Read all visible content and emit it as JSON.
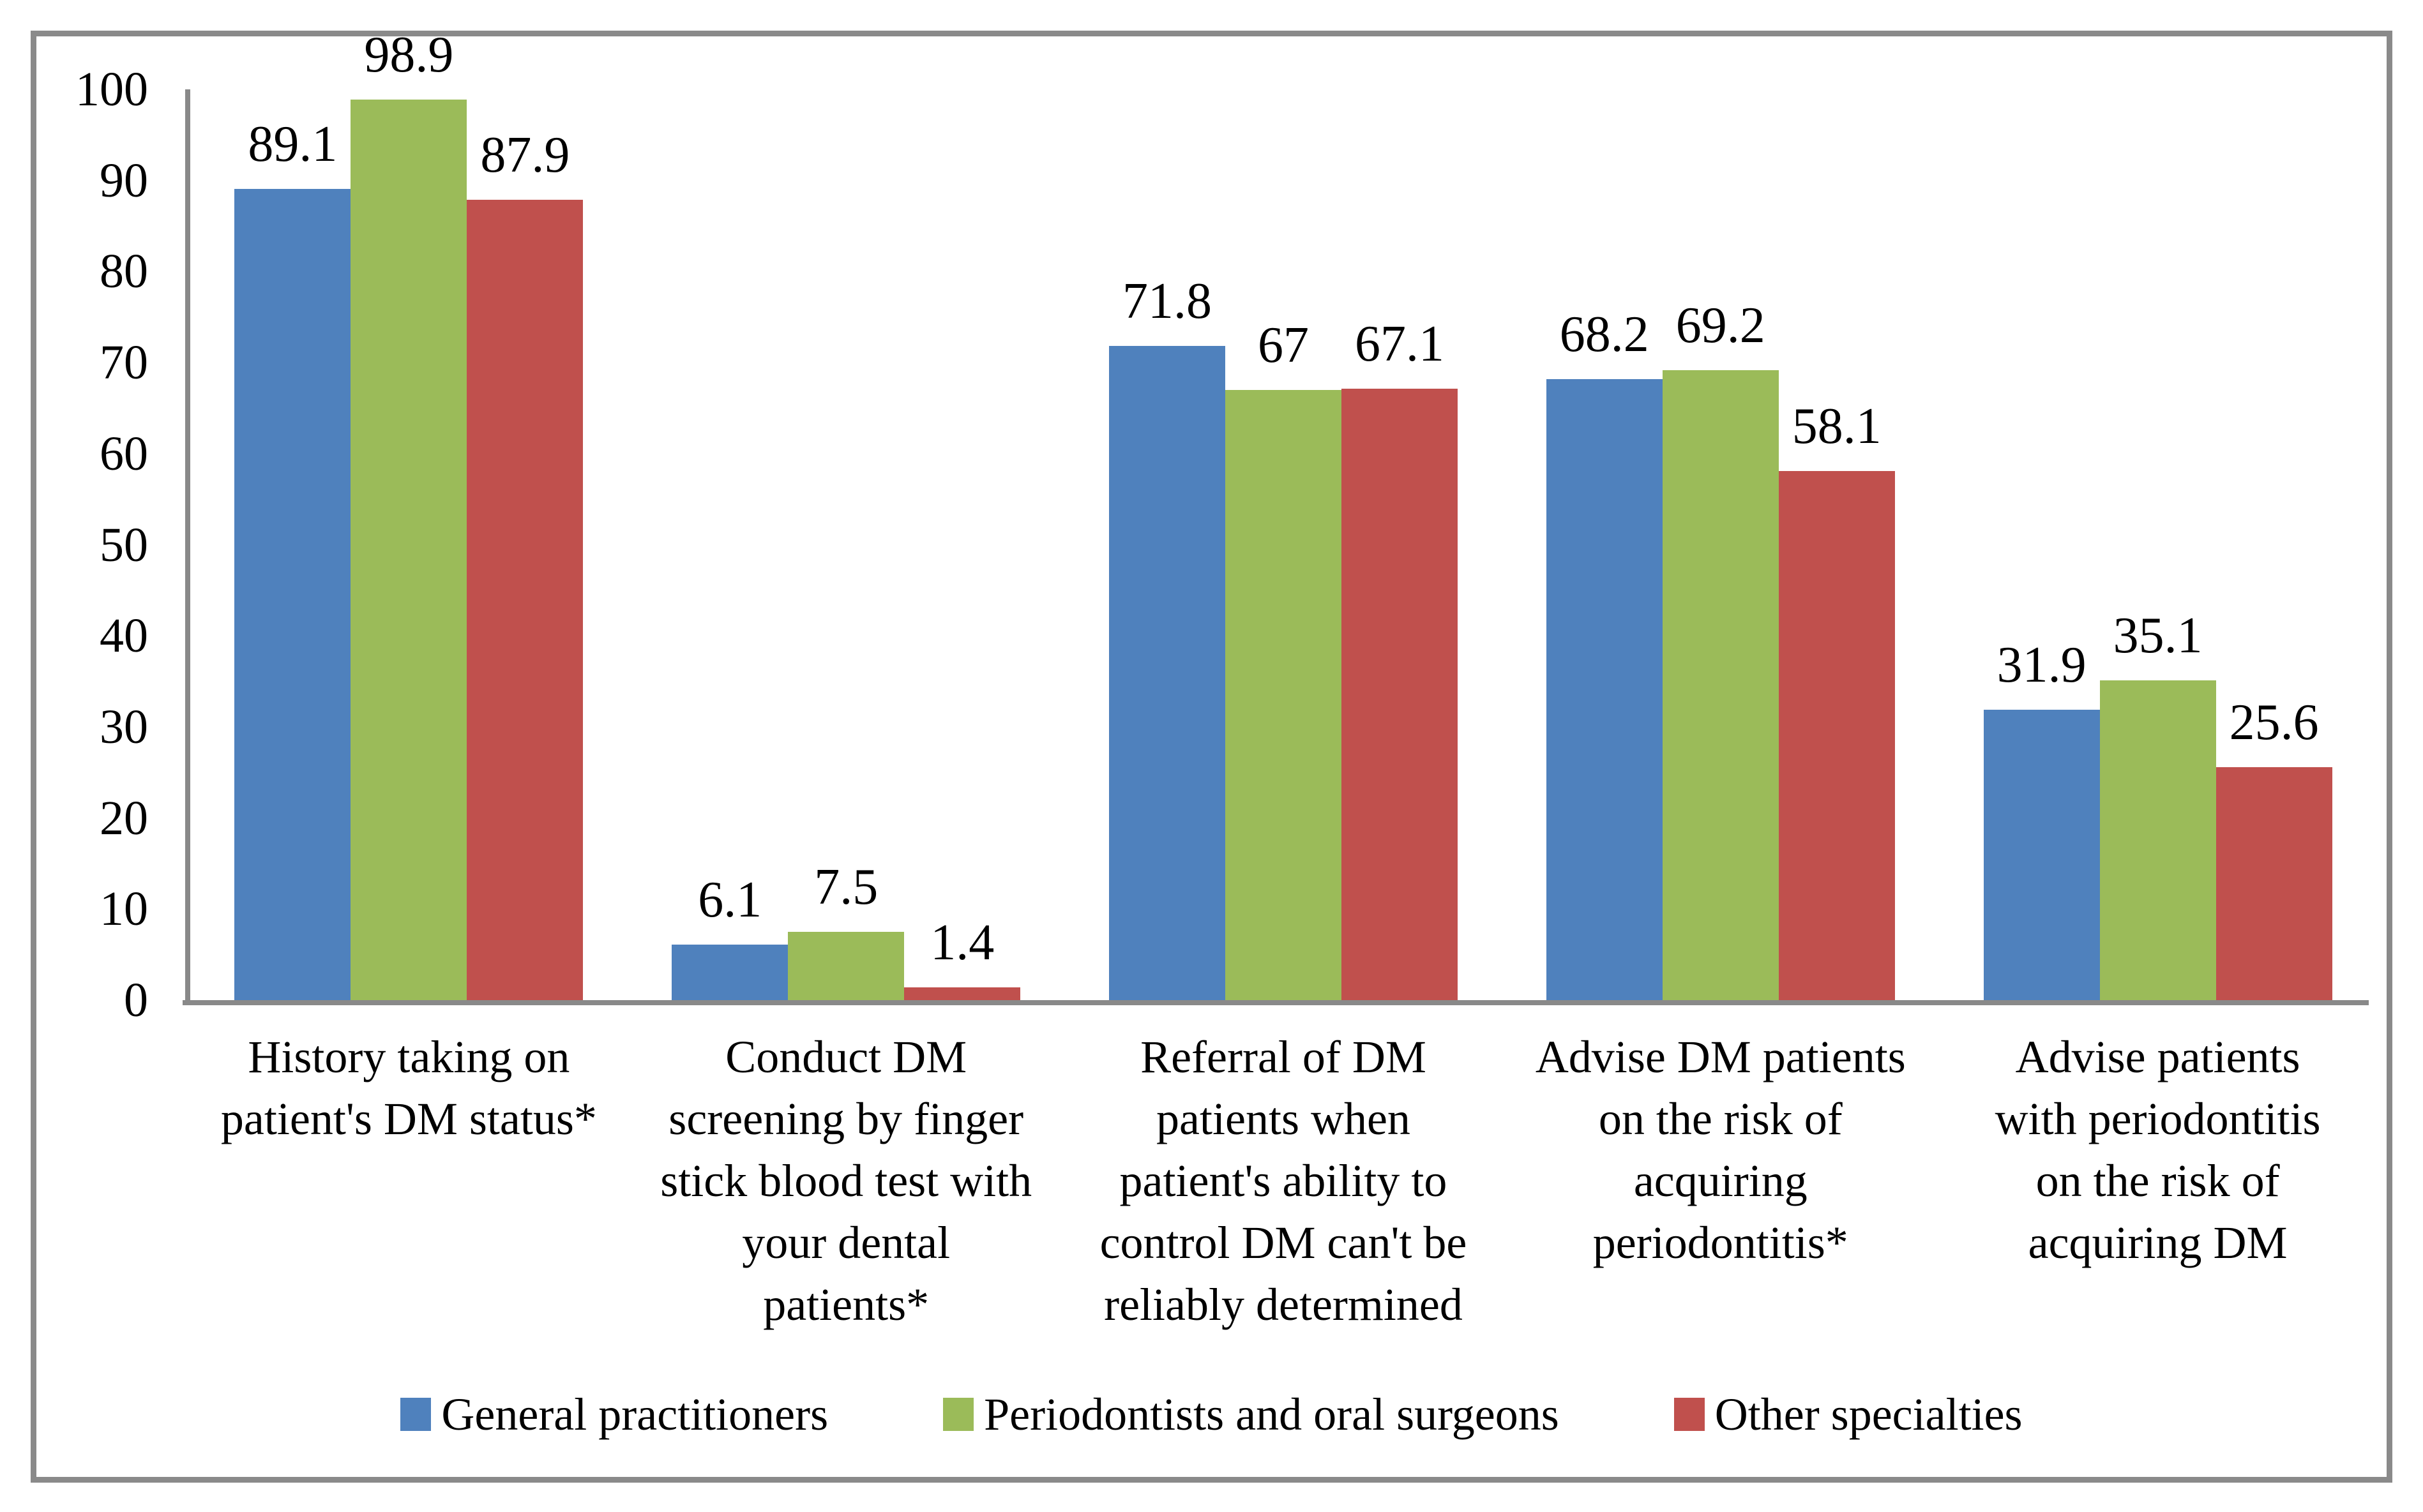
{
  "figure": {
    "background": "#FFFFFF",
    "frame_border_color": "#8A8A8A",
    "axis_color": "#898989",
    "text_color": "#000000"
  },
  "chart_data": {
    "type": "bar",
    "title": "",
    "xlabel": "",
    "ylabel": "",
    "grid": false,
    "legend_position": "bottom",
    "yaxis": {
      "min": 0,
      "max": 100,
      "tick_interval": 10,
      "ticks": [
        0,
        10,
        20,
        30,
        40,
        50,
        60,
        70,
        80,
        90,
        100
      ]
    },
    "categories": [
      "History taking on patient's DM status*",
      "Conduct DM screening by finger stick blood test with your dental patients*",
      "Referral of DM patients when patient's ability to control DM can't be reliably determined",
      "Advise DM patients on the risk of acquiring periodontitis*",
      "Advise patients with periodontitis on the risk of acquiring DM"
    ],
    "category_label_lines": [
      [
        "History taking on",
        "patient's DM status*"
      ],
      [
        "Conduct DM",
        "screening by finger",
        "stick blood test with",
        "your dental",
        "patients*"
      ],
      [
        "Referral of DM",
        "patients when",
        "patient's ability to",
        "control DM can't be",
        "reliably determined"
      ],
      [
        "Advise DM patients",
        "on the risk of",
        "acquiring",
        "periodontitis*"
      ],
      [
        "Advise patients",
        "with periodontitis",
        "on the risk of",
        "acquiring DM"
      ]
    ],
    "series": [
      {
        "name": "General practitioners",
        "color": "#4F81BD",
        "values": [
          89.1,
          6.1,
          71.8,
          68.2,
          31.9
        ],
        "labels": [
          "89.1",
          "6.1",
          "71.8",
          "68.2",
          "31.9"
        ]
      },
      {
        "name": "Periodontists and oral surgeons",
        "color": "#9BBB59",
        "values": [
          98.9,
          7.5,
          67,
          69.2,
          35.1
        ],
        "labels": [
          "98.9",
          "7.5",
          "67",
          "69.2",
          "35.1"
        ]
      },
      {
        "name": "Other specialties",
        "color": "#C0504D",
        "values": [
          87.9,
          1.4,
          67.1,
          58.1,
          25.6
        ],
        "labels": [
          "87.9",
          "1.4",
          "67.1",
          "58.1",
          "25.6"
        ]
      }
    ]
  }
}
